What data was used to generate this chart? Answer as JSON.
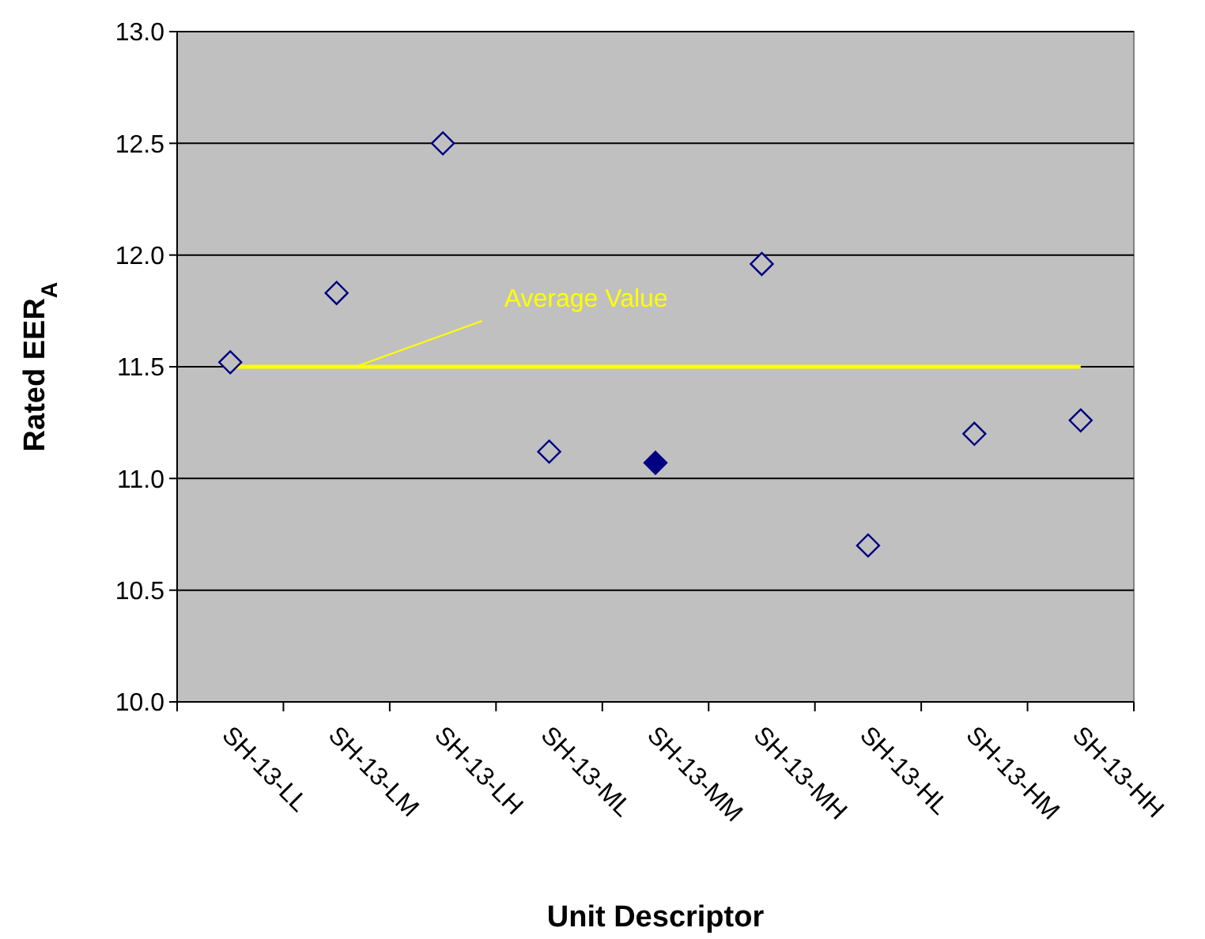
{
  "chart_data": {
    "type": "scatter",
    "xlabel": "Unit Descriptor",
    "ylabel": "Rated EER$_{A}$",
    "categories": [
      "SH-13-LL",
      "SH-13-LM",
      "SH-13-LH",
      "SH-13-ML",
      "SH-13-MM",
      "SH-13-MH",
      "SH-13-HL",
      "SH-13-HM",
      "SH-13-HH"
    ],
    "series": [
      {
        "type": "line",
        "color": "#ffff00",
        "values": [
          11.5,
          11.5,
          11.5,
          11.5,
          11.5,
          11.5,
          11.5,
          11.5,
          11.5
        ],
        "marker": "none"
      },
      {
        "color": "#000080",
        "marker": "diamond",
        "values": [
          11.52,
          11.83,
          12.5,
          11.12,
          11.07,
          11.96,
          10.7,
          11.2,
          11.26
        ],
        "colors": [
          "#c0c0c0",
          "#c0c0c0",
          "#c0c0c0",
          "#c0c0c0",
          "#000080",
          "#c0c0c0",
          "#c0c0c0",
          "#c0c0c0",
          "#c0c0c0"
        ]
      }
    ],
    "annotations": [
      {
        "text": "Average Value",
        "y": 11.5
      }
    ],
    "ylim": [
      10,
      13
    ],
    "yticks": [
      {
        "value": 10,
        "label": "10.0"
      },
      {
        "value": 10.5,
        "label": "10.5"
      },
      {
        "value": 11,
        "label": "11.0"
      },
      {
        "value": 11.5,
        "label": "11.5"
      },
      {
        "value": 12,
        "label": "12.0"
      },
      {
        "value": 12.5,
        "label": "12.5"
      },
      {
        "value": 13,
        "label": "13.0"
      }
    ],
    "grid": "y"
  }
}
